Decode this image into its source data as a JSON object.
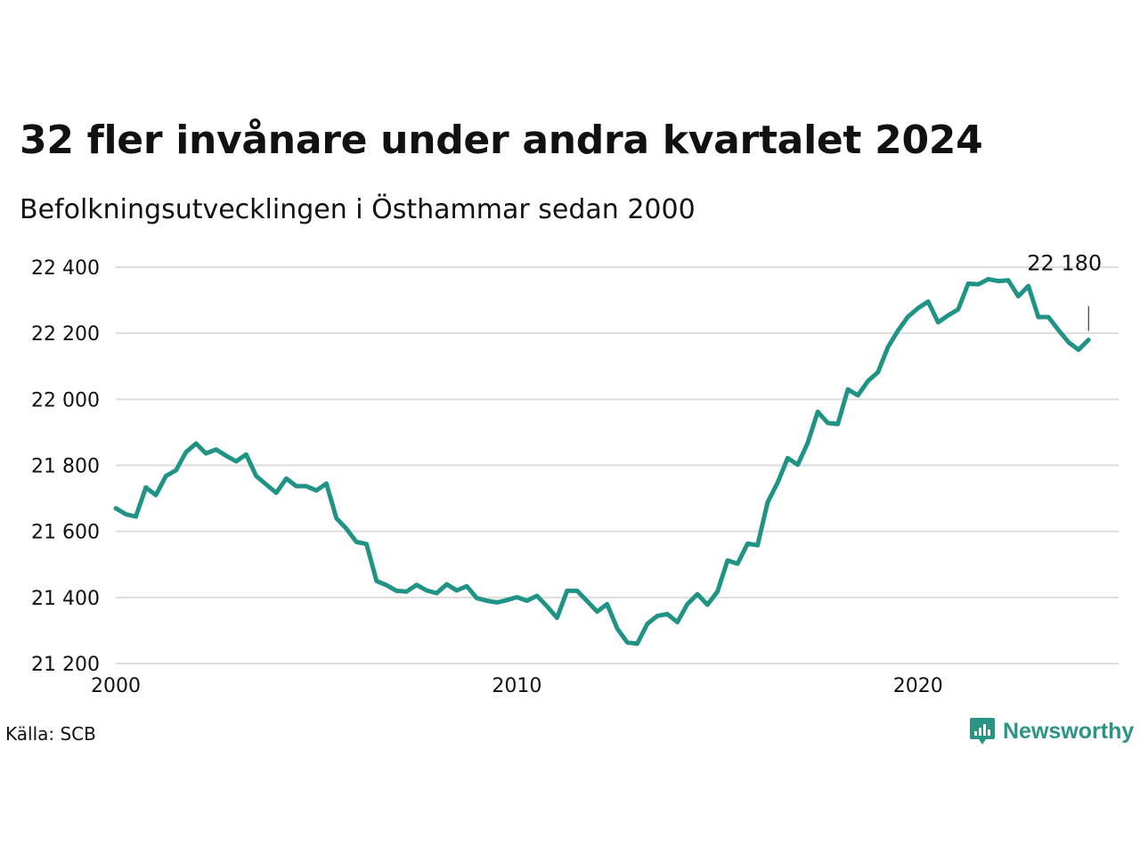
{
  "title": "32 fler invånare under andra kvartalet 2024",
  "subtitle": "Befolkningsutvecklingen i Östhammar sedan 2000",
  "source": "Källa: SCB",
  "brand": {
    "name": "Newsworthy",
    "color": "#2a9585",
    "icon": "newsworthy-logo-icon"
  },
  "colors": {
    "line": "#1f9484",
    "grid": "#dddddd",
    "text": "#111111"
  },
  "chart_data": {
    "type": "line",
    "title": "32 fler invånare under andra kvartalet 2024",
    "subtitle": "Befolkningsutvecklingen i Östhammar sedan 2000",
    "xlim": [
      2000,
      2025
    ],
    "ylim": [
      21200,
      22400
    ],
    "y_ticks": [
      21200,
      21400,
      21600,
      21800,
      22000,
      22200,
      22400
    ],
    "y_tick_labels": [
      "21 200",
      "21 400",
      "21 600",
      "21 800",
      "22 000",
      "22 200",
      "22 400"
    ],
    "x_ticks": [
      2000,
      2010,
      2020
    ],
    "x_tick_labels": [
      "2000",
      "2010",
      "2020"
    ],
    "grid": "horizontal",
    "annotation": {
      "x": 2024.25,
      "y": 22180,
      "label": "22 180"
    },
    "series": [
      {
        "x": [
          2000.0,
          2000.25,
          2000.5,
          2000.75,
          2001.0,
          2001.25,
          2001.5,
          2001.75,
          2002.0,
          2002.25,
          2002.5,
          2002.75,
          2003.0,
          2003.25,
          2003.5,
          2003.75,
          2004.0,
          2004.25,
          2004.5,
          2004.75,
          2005.0,
          2005.25,
          2005.5,
          2005.75,
          2006.0,
          2006.25,
          2006.5,
          2006.75,
          2007.0,
          2007.25,
          2007.5,
          2007.75,
          2008.0,
          2008.25,
          2008.5,
          2008.75,
          2009.0,
          2009.25,
          2009.5,
          2009.75,
          2010.0,
          2010.25,
          2010.5,
          2010.75,
          2011.0,
          2011.25,
          2011.5,
          2011.75,
          2012.0,
          2012.25,
          2012.5,
          2012.75,
          2013.0,
          2013.25,
          2013.5,
          2013.75,
          2014.0,
          2014.25,
          2014.5,
          2014.75,
          2015.0,
          2015.25,
          2015.5,
          2015.75,
          2016.0,
          2016.25,
          2016.5,
          2016.75,
          2017.0,
          2017.25,
          2017.5,
          2017.75,
          2018.0,
          2018.25,
          2018.5,
          2018.75,
          2019.0,
          2019.25,
          2019.5,
          2019.75,
          2020.0,
          2020.25,
          2020.5,
          2020.75,
          2021.0,
          2021.25,
          2021.5,
          2021.75,
          2022.0,
          2022.25,
          2022.5,
          2022.75,
          2023.0,
          2023.25,
          2023.5,
          2023.75,
          2024.0,
          2024.25
        ],
        "values": [
          21670,
          21652,
          21645,
          21733,
          21710,
          21768,
          21785,
          21840,
          21866,
          21836,
          21848,
          21829,
          21812,
          21833,
          21768,
          21742,
          21717,
          21760,
          21737,
          21737,
          21724,
          21745,
          21640,
          21608,
          21568,
          21562,
          21450,
          21437,
          21420,
          21418,
          21438,
          21421,
          21413,
          21440,
          21421,
          21434,
          21398,
          21390,
          21385,
          21392,
          21401,
          21390,
          21405,
          21373,
          21338,
          21420,
          21420,
          21389,
          21357,
          21380,
          21306,
          21264,
          21260,
          21320,
          21344,
          21350,
          21325,
          21380,
          21410,
          21378,
          21418,
          21512,
          21502,
          21563,
          21558,
          21688,
          21748,
          21822,
          21802,
          21868,
          21962,
          21928,
          21925,
          22030,
          22012,
          22055,
          22082,
          22158,
          22208,
          22250,
          22276,
          22296,
          22233,
          22254,
          22272,
          22350,
          22348,
          22364,
          22358,
          22360,
          22312,
          22343,
          22249,
          22249,
          22210,
          22173,
          22150,
          22180
        ]
      }
    ]
  }
}
